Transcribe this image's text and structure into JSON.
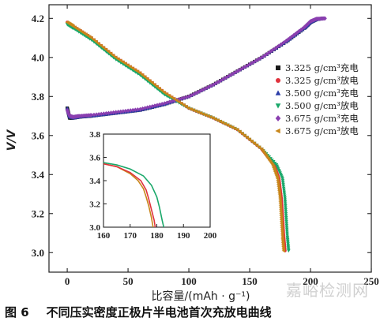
{
  "chart_data": {
    "type": "line",
    "title": "",
    "xlabel": "比容量/(mAh · g⁻¹)",
    "ylabel": "V/V",
    "xlim": [
      -15,
      250
    ],
    "ylim": [
      2.9,
      4.27
    ],
    "xticks": [
      0,
      50,
      100,
      150,
      200,
      250
    ],
    "yticks": [
      3.0,
      3.2,
      3.4,
      3.6,
      3.8,
      4.0,
      4.2
    ],
    "grid": false,
    "legend_position": "right",
    "series": [
      {
        "name": "3.325 g/cm³充电",
        "color": "#1a1a1a",
        "marker": "square",
        "x": [
          0,
          2,
          5,
          10,
          20,
          40,
          60,
          80,
          100,
          120,
          140,
          160,
          180,
          195,
          200,
          205,
          210
        ],
        "y": [
          3.74,
          3.69,
          3.69,
          3.695,
          3.7,
          3.715,
          3.73,
          3.76,
          3.8,
          3.86,
          3.93,
          4.0,
          4.08,
          4.15,
          4.18,
          4.195,
          4.2
        ]
      },
      {
        "name": "3.325 g/cm³放电",
        "color": "#e0323c",
        "marker": "circle",
        "x": [
          0,
          5,
          20,
          40,
          60,
          80,
          100,
          120,
          140,
          160,
          170,
          174,
          176,
          177,
          178,
          179
        ],
        "y": [
          4.18,
          4.16,
          4.1,
          4.0,
          3.92,
          3.82,
          3.74,
          3.69,
          3.63,
          3.53,
          3.45,
          3.38,
          3.28,
          3.18,
          3.08,
          3.01
        ]
      },
      {
        "name": "3.500 g/cm³充电",
        "color": "#2b3da8",
        "marker": "triangle",
        "x": [
          0,
          2,
          5,
          10,
          20,
          40,
          60,
          80,
          100,
          120,
          140,
          160,
          180,
          195,
          200,
          205,
          211
        ],
        "y": [
          3.74,
          3.695,
          3.69,
          3.695,
          3.7,
          3.715,
          3.73,
          3.76,
          3.8,
          3.86,
          3.93,
          4.0,
          4.08,
          4.15,
          4.18,
          4.195,
          4.2
        ]
      },
      {
        "name": "3.500 g/cm³放电",
        "color": "#1aa86a",
        "marker": "triangle-down",
        "x": [
          0,
          5,
          20,
          40,
          60,
          80,
          100,
          120,
          140,
          160,
          172,
          177,
          179,
          180,
          181,
          182
        ],
        "y": [
          4.17,
          4.15,
          4.09,
          3.99,
          3.91,
          3.81,
          3.74,
          3.69,
          3.63,
          3.53,
          3.45,
          3.38,
          3.28,
          3.18,
          3.08,
          3.01
        ]
      },
      {
        "name": "3.675 g/cm³充电",
        "color": "#8a3fb0",
        "marker": "diamond",
        "x": [
          0,
          2,
          5,
          10,
          20,
          40,
          60,
          80,
          100,
          120,
          140,
          160,
          180,
          195,
          200,
          205,
          212
        ],
        "y": [
          3.73,
          3.7,
          3.695,
          3.7,
          3.705,
          3.72,
          3.735,
          3.765,
          3.8,
          3.86,
          3.93,
          4.0,
          4.085,
          4.155,
          4.185,
          4.198,
          4.2
        ]
      },
      {
        "name": "3.675 g/cm³放电",
        "color": "#c8861a",
        "marker": "triangle-left",
        "x": [
          0,
          5,
          20,
          40,
          60,
          80,
          100,
          120,
          140,
          160,
          169,
          173,
          175,
          176,
          177,
          178
        ],
        "y": [
          4.18,
          4.16,
          4.1,
          4.0,
          3.92,
          3.82,
          3.74,
          3.69,
          3.63,
          3.53,
          3.45,
          3.38,
          3.28,
          3.18,
          3.08,
          3.01
        ]
      }
    ],
    "inset": {
      "xlim": [
        160,
        200
      ],
      "ylim": [
        3.0,
        3.8
      ],
      "xticks": [
        160,
        170,
        180,
        190,
        200
      ],
      "yticks": [
        3.0,
        3.2,
        3.4,
        3.6,
        3.8
      ],
      "series": [
        {
          "color": "#c8861a",
          "x": [
            160,
            165,
            170,
            173,
            175,
            176,
            177,
            178,
            178.6
          ],
          "y": [
            3.545,
            3.52,
            3.46,
            3.4,
            3.33,
            3.26,
            3.18,
            3.08,
            3.0
          ]
        },
        {
          "color": "#e0323c",
          "x": [
            160,
            165,
            170,
            174,
            176,
            177,
            178,
            179,
            179.4
          ],
          "y": [
            3.545,
            3.52,
            3.47,
            3.4,
            3.32,
            3.24,
            3.15,
            3.06,
            3.0
          ]
        },
        {
          "color": "#1aa86a",
          "x": [
            160,
            165,
            170,
            175,
            178,
            180,
            181,
            182,
            182.6
          ],
          "y": [
            3.555,
            3.535,
            3.5,
            3.44,
            3.36,
            3.26,
            3.17,
            3.06,
            3.0
          ]
        }
      ]
    }
  },
  "caption": {
    "figure_number": "图 6",
    "text": "不同压实密度正极片半电池首次充放电曲线"
  },
  "watermark": "嘉峪检测网"
}
